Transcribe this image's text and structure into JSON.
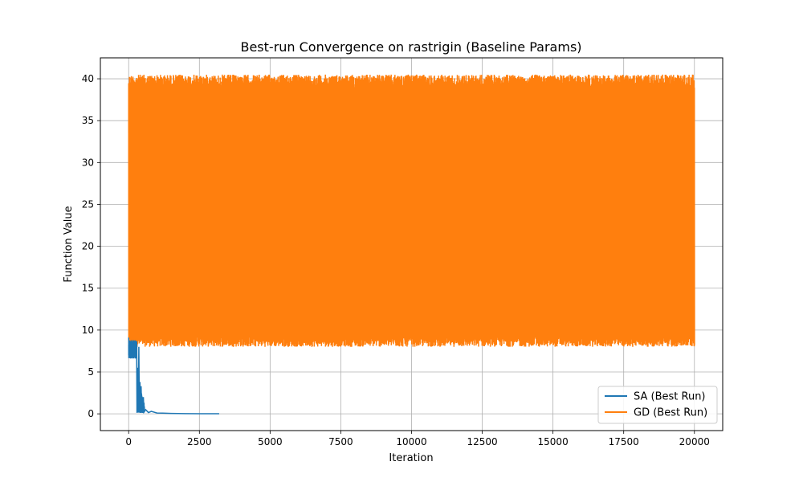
{
  "chart_data": {
    "type": "line",
    "title": "Best-run Convergence on rastrigin (Baseline Params)",
    "xlabel": "Iteration",
    "ylabel": "Function Value",
    "xlim": [
      -1000,
      21000
    ],
    "ylim": [
      -2,
      42.5
    ],
    "xticks": [
      0,
      2500,
      5000,
      7500,
      10000,
      12500,
      15000,
      17500,
      20000
    ],
    "yticks": [
      0,
      5,
      10,
      15,
      20,
      25,
      30,
      35,
      40
    ],
    "grid": true,
    "legend_position": "lower right",
    "series": [
      {
        "name": "SA (Best Run)",
        "color": "#1f77b4",
        "points": [
          [
            0,
            9.1
          ],
          [
            20,
            6.8
          ],
          [
            50,
            7.2
          ],
          [
            80,
            6.9
          ],
          [
            110,
            8.5
          ],
          [
            140,
            7.0
          ],
          [
            170,
            8.6
          ],
          [
            200,
            6.8
          ],
          [
            230,
            8.3
          ],
          [
            260,
            7.5
          ],
          [
            280,
            8.1
          ],
          [
            300,
            0.4
          ],
          [
            320,
            5.5
          ],
          [
            340,
            0.3
          ],
          [
            360,
            8.0
          ],
          [
            380,
            0.5
          ],
          [
            400,
            3.8
          ],
          [
            420,
            0.6
          ],
          [
            440,
            3.3
          ],
          [
            460,
            0.4
          ],
          [
            480,
            1.3
          ],
          [
            500,
            0.3
          ],
          [
            520,
            2.0
          ],
          [
            540,
            0.2
          ],
          [
            600,
            0.5
          ],
          [
            700,
            0.15
          ],
          [
            800,
            0.3
          ],
          [
            1000,
            0.1
          ],
          [
            1200,
            0.08
          ],
          [
            1500,
            0.05
          ],
          [
            2000,
            0.03
          ],
          [
            2500,
            0.02
          ],
          [
            3000,
            0.01
          ],
          [
            3200,
            0.01
          ]
        ]
      },
      {
        "name": "GD (Best Run)",
        "color": "#ff7f0e",
        "x_start": 0,
        "x_end": 20000,
        "oscillation_range": [
          8.0,
          40.5
        ]
      }
    ]
  }
}
